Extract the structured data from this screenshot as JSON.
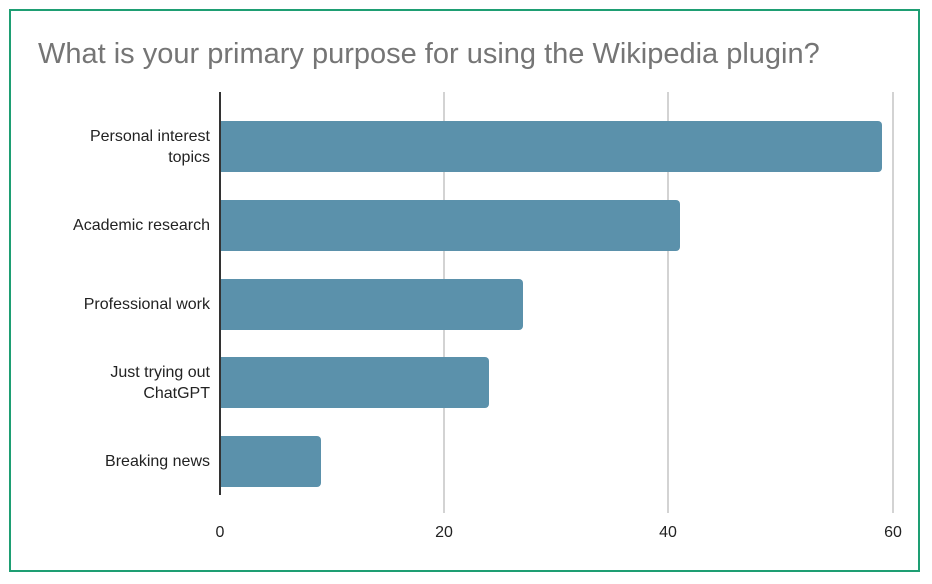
{
  "chart_data": {
    "type": "bar",
    "orientation": "horizontal",
    "title": "What is your primary purpose for using the Wikipedia plugin?",
    "categories": [
      "Personal interest topics",
      "Academic research",
      "Professional work",
      "Just trying out ChatGPT",
      "Breaking news"
    ],
    "category_lines": [
      [
        "Personal interest",
        "topics"
      ],
      [
        "Academic research"
      ],
      [
        "Professional work"
      ],
      [
        "Just trying out",
        "ChatGPT"
      ],
      [
        "Breaking news"
      ]
    ],
    "values": [
      59,
      41,
      27,
      24,
      9
    ],
    "xlabel": "",
    "ylabel": "",
    "xlim": [
      0,
      60
    ],
    "xticks": [
      "0",
      "20",
      "40",
      "60"
    ],
    "grid": "vertical",
    "legend": "none",
    "bar_color": "#5b91ab",
    "border_color": "#1e9e73"
  }
}
